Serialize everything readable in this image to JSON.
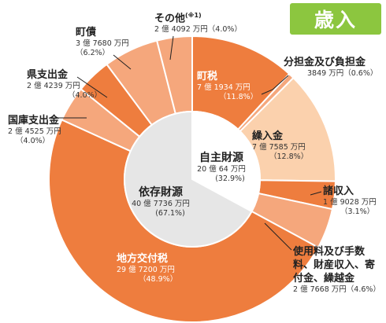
{
  "badge": "歳入",
  "chart_data": {
    "type": "pie",
    "title": "",
    "unit": "万円",
    "slices": [
      {
        "name": "町税",
        "amount": "7 億 1934 万円",
        "value": 71934,
        "percent": "11.8%",
        "color": "#ee7d3e",
        "group": "自主財源"
      },
      {
        "name": "分担金及び負担金",
        "amount": "3849 万円",
        "value": 3849,
        "percent": "0.6%",
        "color": "#f5a77c",
        "group": "自主財源"
      },
      {
        "name": "繰入金",
        "amount": "7 億 7585 万円",
        "value": 77585,
        "percent": "12.8%",
        "color": "#fbd1ad",
        "group": "自主財源"
      },
      {
        "name": "諸収入",
        "amount": "1 億 9028 万円",
        "value": 19028,
        "percent": "3.1%",
        "color": "#ee7d3e",
        "group": "自主財源"
      },
      {
        "name": "使用料及び手数料、財産収入、寄付金、繰越金",
        "amount": "2 億 7668 万円",
        "value": 27668,
        "percent": "4.6%",
        "color": "#f5a77c",
        "group": "自主財源"
      },
      {
        "name": "地方交付税",
        "amount": "29 億 7200 万円",
        "value": 297200,
        "percent": "48.9%",
        "color": "#ee7d3e",
        "group": "依存財源"
      },
      {
        "name": "国庫支出金",
        "amount": "2 億 4525 万円",
        "value": 24525,
        "percent": "4.0%",
        "color": "#f5a77c",
        "group": "依存財源"
      },
      {
        "name": "県支出金",
        "amount": "2 億 4239 万円",
        "value": 24239,
        "percent": "4.0%",
        "color": "#ee7d3e",
        "group": "依存財源"
      },
      {
        "name": "町債",
        "amount": "3 億 7680 万円",
        "value": 37680,
        "percent": "6.2%",
        "color": "#f5a77c",
        "group": "依存財源"
      },
      {
        "name": "その他",
        "note": "(※1)",
        "amount": "2 億 4092 万円",
        "value": 24092,
        "percent": "4.0%",
        "color": "#f5a77c",
        "group": "依存財源"
      }
    ],
    "inner_ring": [
      {
        "name": "自主財源",
        "amount": "20 億 64 万円",
        "value": 200064,
        "percent": "(32.9%)",
        "color": "#ffffff"
      },
      {
        "name": "依存財源",
        "amount": "40 億 7736 万円",
        "value": 407736,
        "percent": "(67.1%)",
        "color": "#e6e6e6"
      }
    ]
  }
}
